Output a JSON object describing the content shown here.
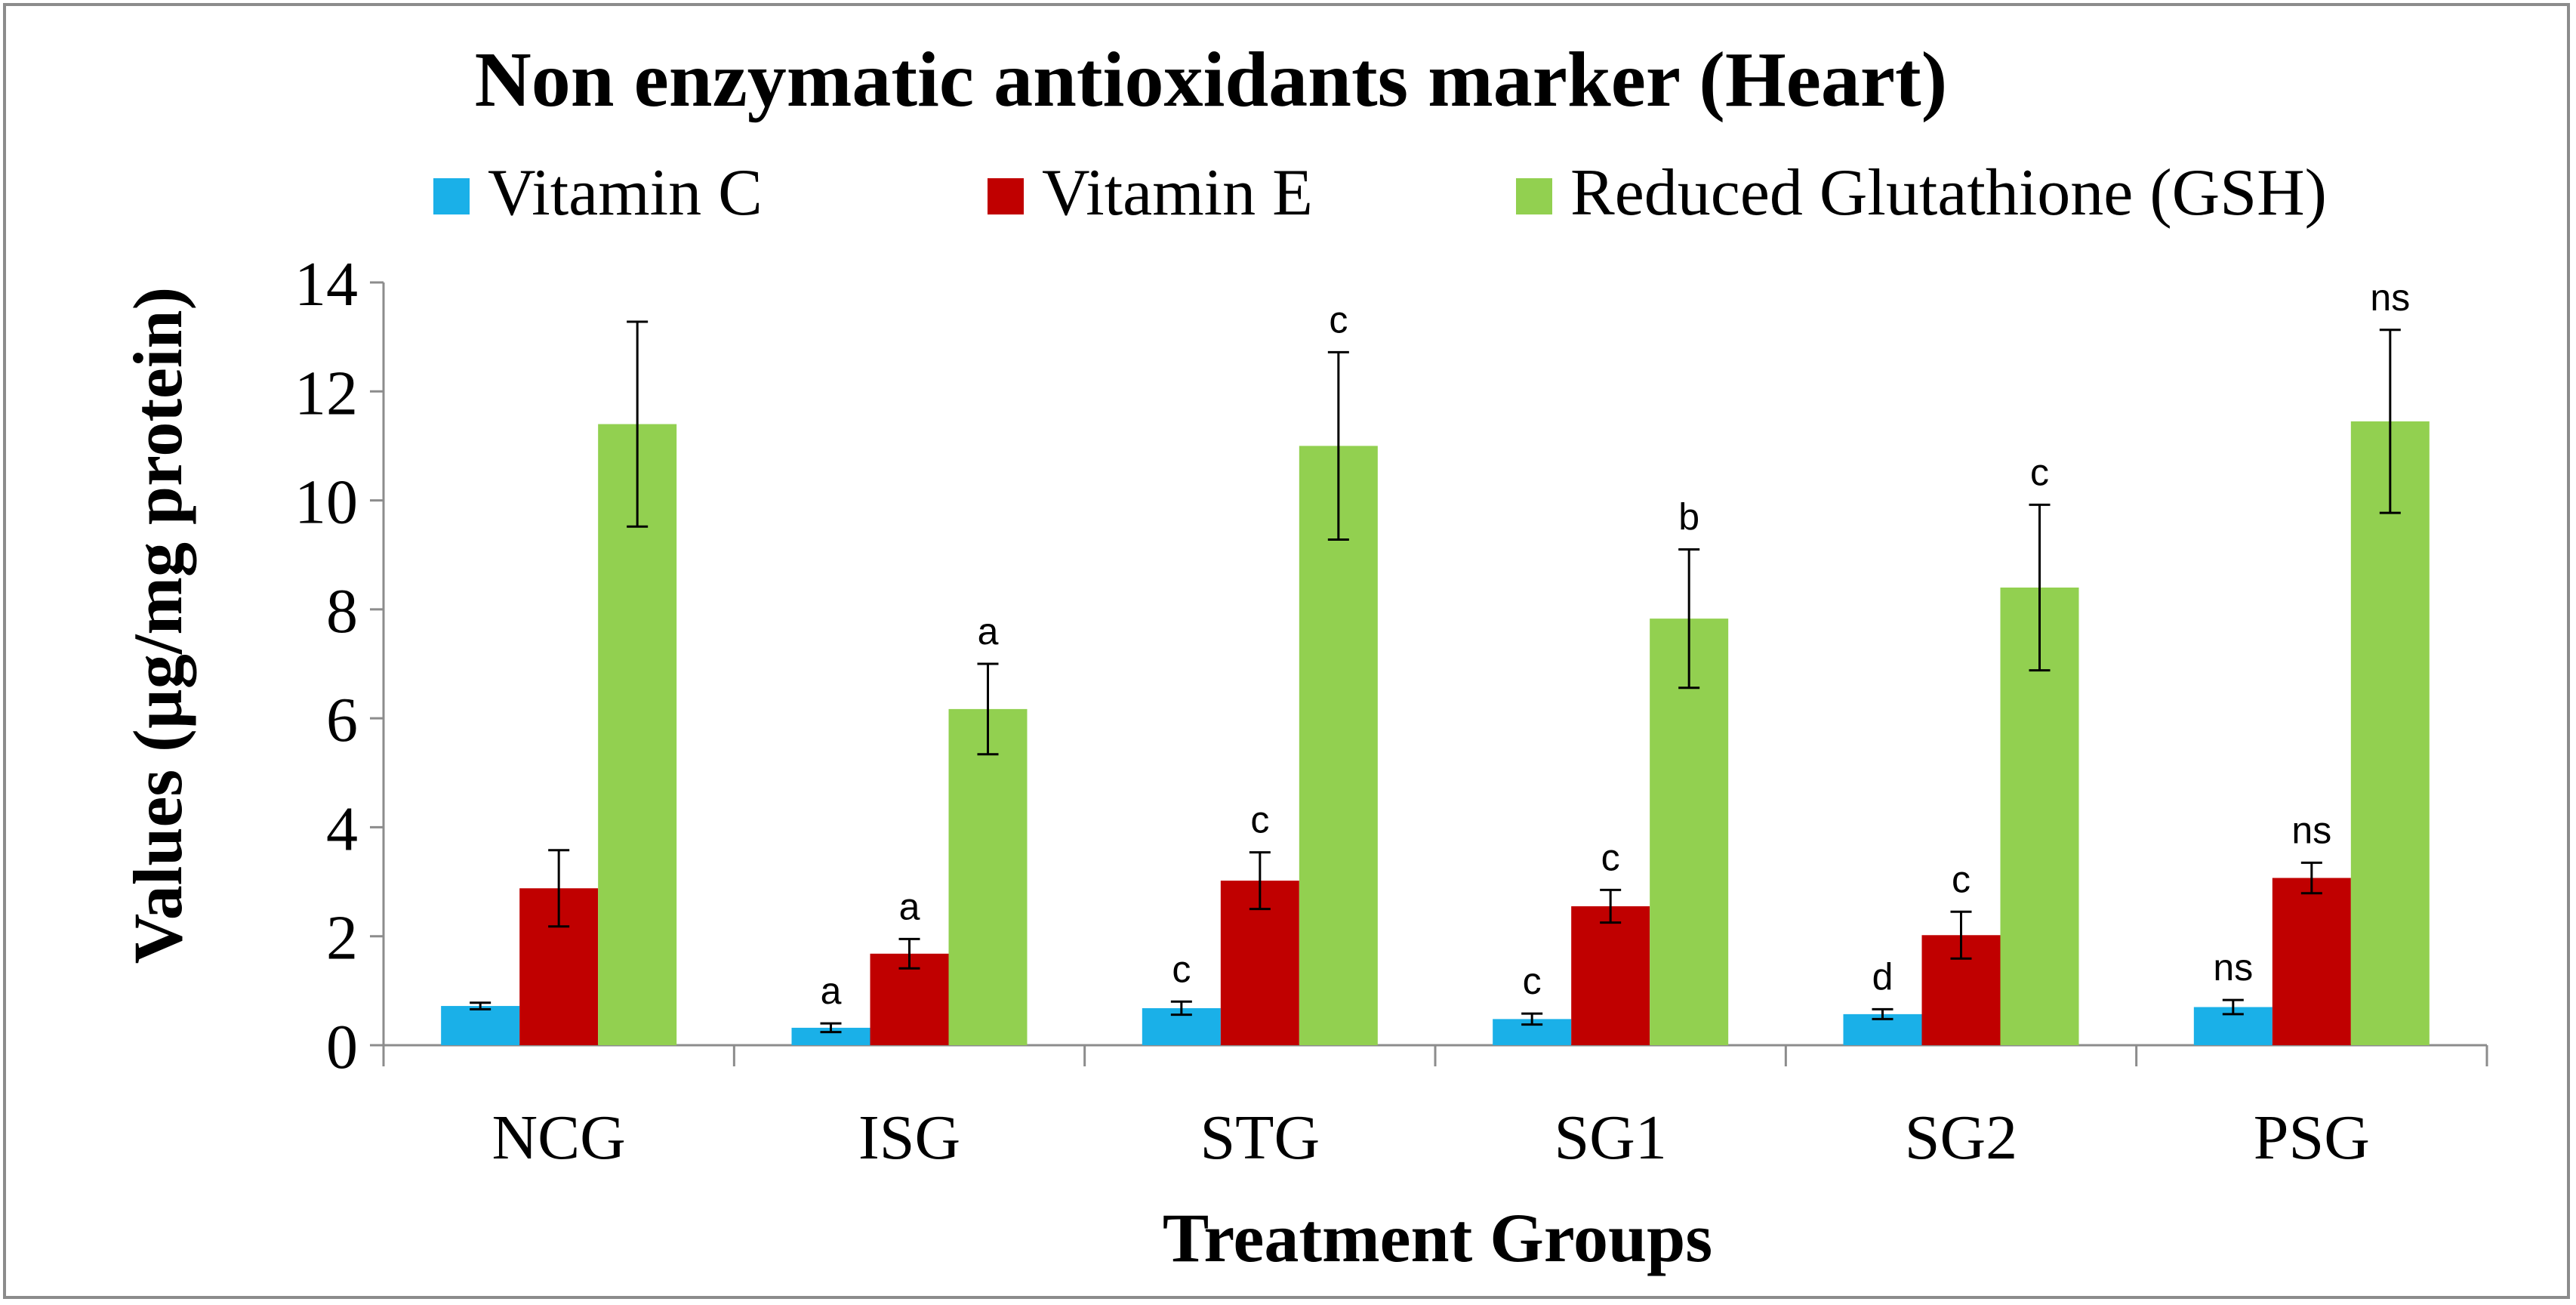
{
  "chart_data": {
    "type": "bar",
    "title": "Non enzymatic antioxidants marker (Heart)",
    "xlabel": "Treatment Groups",
    "ylabel": "Values (µg/mg protein)",
    "ylim": [
      0,
      14
    ],
    "yticks": [
      0,
      2,
      4,
      6,
      8,
      10,
      12,
      14
    ],
    "grid": false,
    "legend_position": "top",
    "categories": [
      "NCG",
      "ISG",
      "STG",
      "SG1",
      "SG2",
      "PSG"
    ],
    "series": [
      {
        "name": "Vitamin C",
        "color": "#1ab0e8",
        "values": [
          0.72,
          0.32,
          0.68,
          0.48,
          0.57,
          0.7
        ],
        "errors": [
          0.06,
          0.08,
          0.12,
          0.1,
          0.09,
          0.13
        ],
        "annotations": [
          "",
          "a",
          "c",
          "c",
          "d",
          "ns"
        ]
      },
      {
        "name": "Vitamin E",
        "color": "#c00000",
        "values": [
          2.88,
          1.68,
          3.02,
          2.55,
          2.02,
          3.07
        ],
        "errors": [
          0.7,
          0.27,
          0.52,
          0.3,
          0.43,
          0.28
        ],
        "annotations": [
          "",
          "a",
          "c",
          "c",
          "c",
          "ns"
        ]
      },
      {
        "name": "Reduced Glutathione (GSH)",
        "color": "#92d050",
        "values": [
          11.4,
          6.17,
          11.0,
          7.83,
          8.4,
          11.45
        ],
        "errors": [
          1.88,
          0.83,
          1.72,
          1.27,
          1.52,
          1.68
        ],
        "annotations": [
          "",
          "a",
          "c",
          "b",
          "c",
          "ns"
        ]
      }
    ]
  }
}
